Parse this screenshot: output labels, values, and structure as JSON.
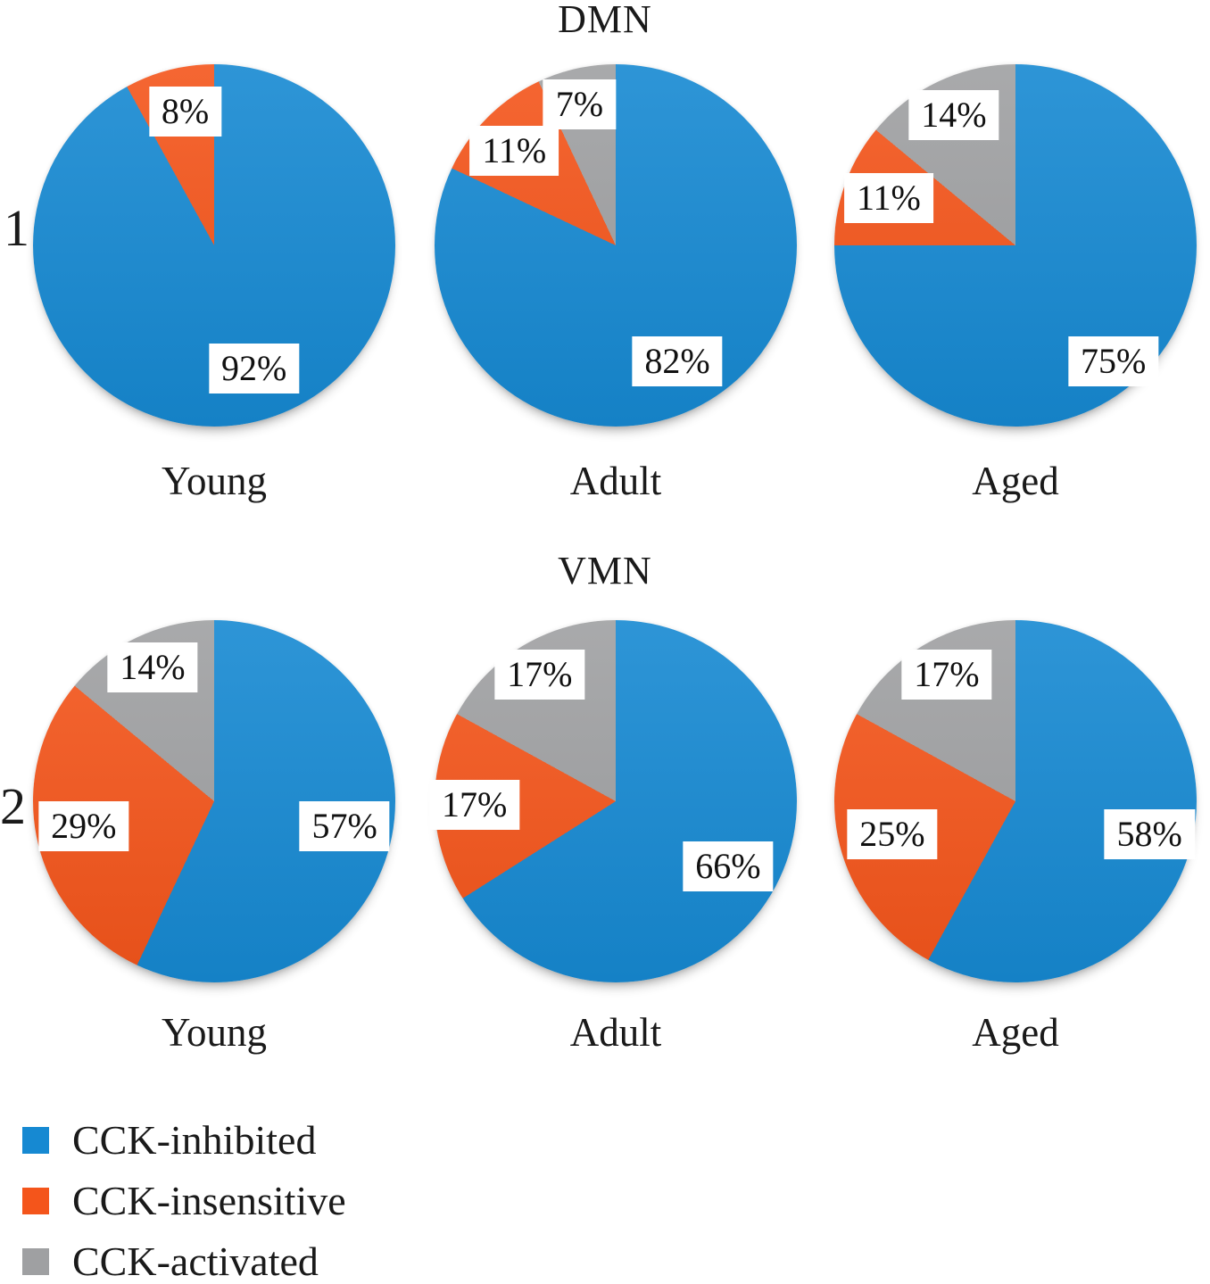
{
  "chart_data": {
    "type": "pie",
    "layout": "grid-2x3",
    "slice_order": "clockwise-from-top",
    "legend_position": "bottom-left",
    "background": "#ffffff",
    "legend": [
      {
        "label": "CCK-inhibited",
        "color": "#1689d2"
      },
      {
        "label": "CCK-insensitive",
        "color": "#f4551b"
      },
      {
        "label": "CCK-activated",
        "color": "#9fa0a2"
      }
    ],
    "rows": [
      {
        "id": "1",
        "title": "DMN",
        "pies": [
          {
            "category": "Young",
            "slices": [
              {
                "label": "CCK-inhibited",
                "percent": 92,
                "text": "92%",
                "pos": [
                  61,
                  84
                ]
              },
              {
                "label": "CCK-insensitive",
                "percent": 8,
                "text": "8%",
                "pos": [
                  42,
                  13
                ]
              }
            ]
          },
          {
            "category": "Adult",
            "slices": [
              {
                "label": "CCK-inhibited",
                "percent": 82,
                "text": "82%",
                "pos": [
                  67,
                  82
                ]
              },
              {
                "label": "CCK-insensitive",
                "percent": 11,
                "text": "11%",
                "pos": [
                  22,
                  24
                ]
              },
              {
                "label": "CCK-activated",
                "percent": 7,
                "text": "7%",
                "pos": [
                  40,
                  11
                ]
              }
            ]
          },
          {
            "category": "Aged",
            "slices": [
              {
                "label": "CCK-inhibited",
                "percent": 75,
                "text": "75%",
                "pos": [
                  77,
                  82
                ]
              },
              {
                "label": "CCK-insensitive",
                "percent": 11,
                "text": "11%",
                "pos": [
                  15,
                  37
                ]
              },
              {
                "label": "CCK-activated",
                "percent": 14,
                "text": "14%",
                "pos": [
                  33,
                  14
                ]
              }
            ]
          }
        ]
      },
      {
        "id": "2",
        "title": "VMN",
        "pies": [
          {
            "category": "Young",
            "slices": [
              {
                "label": "CCK-inhibited",
                "percent": 57,
                "text": "57%",
                "pos": [
                  86,
                  57
                ]
              },
              {
                "label": "CCK-insensitive",
                "percent": 29,
                "text": "29%",
                "pos": [
                  14,
                  57
                ]
              },
              {
                "label": "CCK-activated",
                "percent": 14,
                "text": "14%",
                "pos": [
                  33,
                  13
                ]
              }
            ]
          },
          {
            "category": "Adult",
            "slices": [
              {
                "label": "CCK-inhibited",
                "percent": 66,
                "text": "66%",
                "pos": [
                  81,
                  68
                ]
              },
              {
                "label": "CCK-insensitive",
                "percent": 17,
                "text": "17%",
                "pos": [
                  11,
                  51
                ]
              },
              {
                "label": "CCK-activated",
                "percent": 17,
                "text": "17%",
                "pos": [
                  29,
                  15
                ]
              }
            ]
          },
          {
            "category": "Aged",
            "slices": [
              {
                "label": "CCK-inhibited",
                "percent": 58,
                "text": "58%",
                "pos": [
                  87,
                  59
                ]
              },
              {
                "label": "CCK-insensitive",
                "percent": 25,
                "text": "25%",
                "pos": [
                  16,
                  59
                ]
              },
              {
                "label": "CCK-activated",
                "percent": 17,
                "text": "17%",
                "pos": [
                  31,
                  15
                ]
              }
            ]
          }
        ]
      }
    ]
  }
}
